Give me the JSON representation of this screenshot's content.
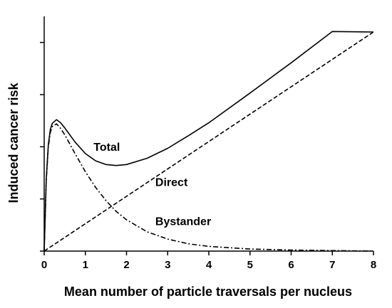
{
  "chart_data": {
    "type": "line",
    "title": "",
    "xlabel": "Mean number of particle traversals per nucleus",
    "ylabel": "Induced cancer risk",
    "xlim": [
      0,
      8
    ],
    "ylim": [
      0,
      4.2
    ],
    "x_ticks": [
      "0",
      "1",
      "2",
      "3",
      "4",
      "5",
      "6",
      "7",
      "8"
    ],
    "y_tick_values": [
      0,
      1,
      2,
      3,
      4
    ],
    "y_tick_labels_shown": false,
    "grid": false,
    "series": [
      {
        "name": "Total",
        "style": "solid",
        "x": [
          0,
          0.05,
          0.1,
          0.15,
          0.2,
          0.3,
          0.4,
          0.5,
          0.75,
          1.0,
          1.25,
          1.5,
          1.75,
          2.0,
          2.5,
          3.0,
          3.5,
          4.0,
          5.0,
          6.0,
          7.0,
          8.0
        ],
        "y": [
          0,
          1.38,
          2.04,
          2.34,
          2.45,
          2.52,
          2.46,
          2.36,
          2.09,
          1.87,
          1.73,
          1.66,
          1.64,
          1.66,
          1.78,
          1.97,
          2.21,
          2.46,
          3.03,
          3.61,
          4.21,
          4.2
        ]
      },
      {
        "name": "Direct",
        "style": "dashed",
        "x": [
          0,
          8
        ],
        "y": [
          0,
          4.2
        ]
      },
      {
        "name": "Bystander",
        "style": "dashdot",
        "x": [
          0,
          0.05,
          0.1,
          0.15,
          0.2,
          0.3,
          0.4,
          0.5,
          0.75,
          1.0,
          1.25,
          1.5,
          1.75,
          2.0,
          2.5,
          3.0,
          3.5,
          4.0,
          5.0,
          6.0,
          7.0,
          8.0
        ],
        "y": [
          0,
          1.36,
          2.0,
          2.28,
          2.39,
          2.44,
          2.35,
          2.23,
          1.87,
          1.52,
          1.22,
          0.97,
          0.76,
          0.6,
          0.37,
          0.23,
          0.14,
          0.09,
          0.04,
          0.02,
          0.01,
          0.0
        ]
      }
    ],
    "annotations": [
      {
        "text": "Total",
        "x": 1.2,
        "y": 1.92
      },
      {
        "text": "Direct",
        "x": 2.7,
        "y": 1.25
      },
      {
        "text": "Bystander",
        "x": 2.7,
        "y": 0.5
      }
    ]
  }
}
